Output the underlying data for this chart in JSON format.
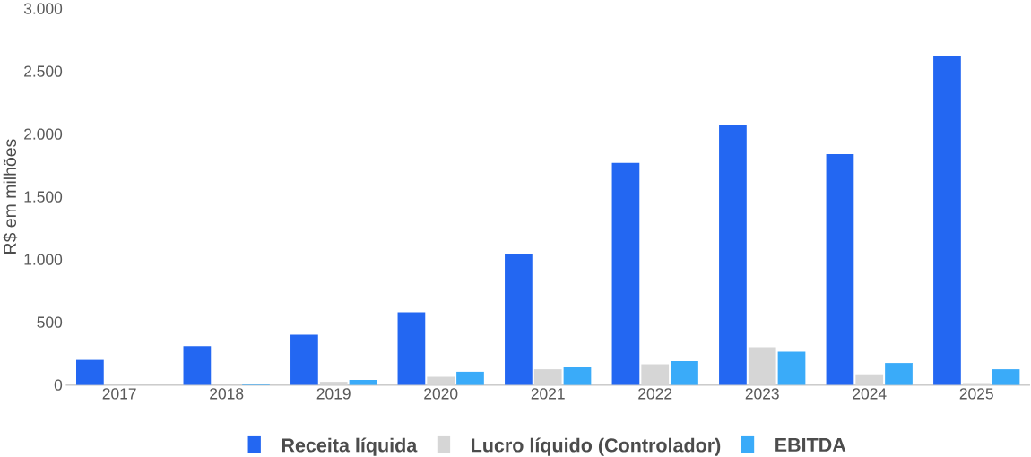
{
  "chart_data": {
    "type": "bar",
    "ylabel": "R$ em milhões",
    "categories": [
      "2017",
      "2018",
      "2019",
      "2020",
      "2021",
      "2022",
      "2023",
      "2024",
      "2025"
    ],
    "series": [
      {
        "name": "Receita líquida",
        "color": "#2367f2",
        "values": [
          200,
          310,
          400,
          580,
          1040,
          1770,
          2070,
          1840,
          2620
        ]
      },
      {
        "name": "Lucro líquido (Controlador)",
        "color": "#d6d6d6",
        "values": [
          null,
          null,
          25,
          65,
          125,
          165,
          300,
          85,
          15
        ]
      },
      {
        "name": "EBITDA",
        "color": "#3aabf9",
        "values": [
          null,
          10,
          40,
          105,
          140,
          190,
          265,
          175,
          125
        ]
      }
    ],
    "ylim": [
      0,
      3000
    ],
    "yticks": [
      {
        "value": 0,
        "label": "0"
      },
      {
        "value": 500,
        "label": "500"
      },
      {
        "value": 1000,
        "label": "1.000"
      },
      {
        "value": 1500,
        "label": "1.500"
      },
      {
        "value": 2000,
        "label": "2.000"
      },
      {
        "value": 2500,
        "label": "2.500"
      },
      {
        "value": 3000,
        "label": "3.000"
      }
    ],
    "legend": "bottom"
  }
}
